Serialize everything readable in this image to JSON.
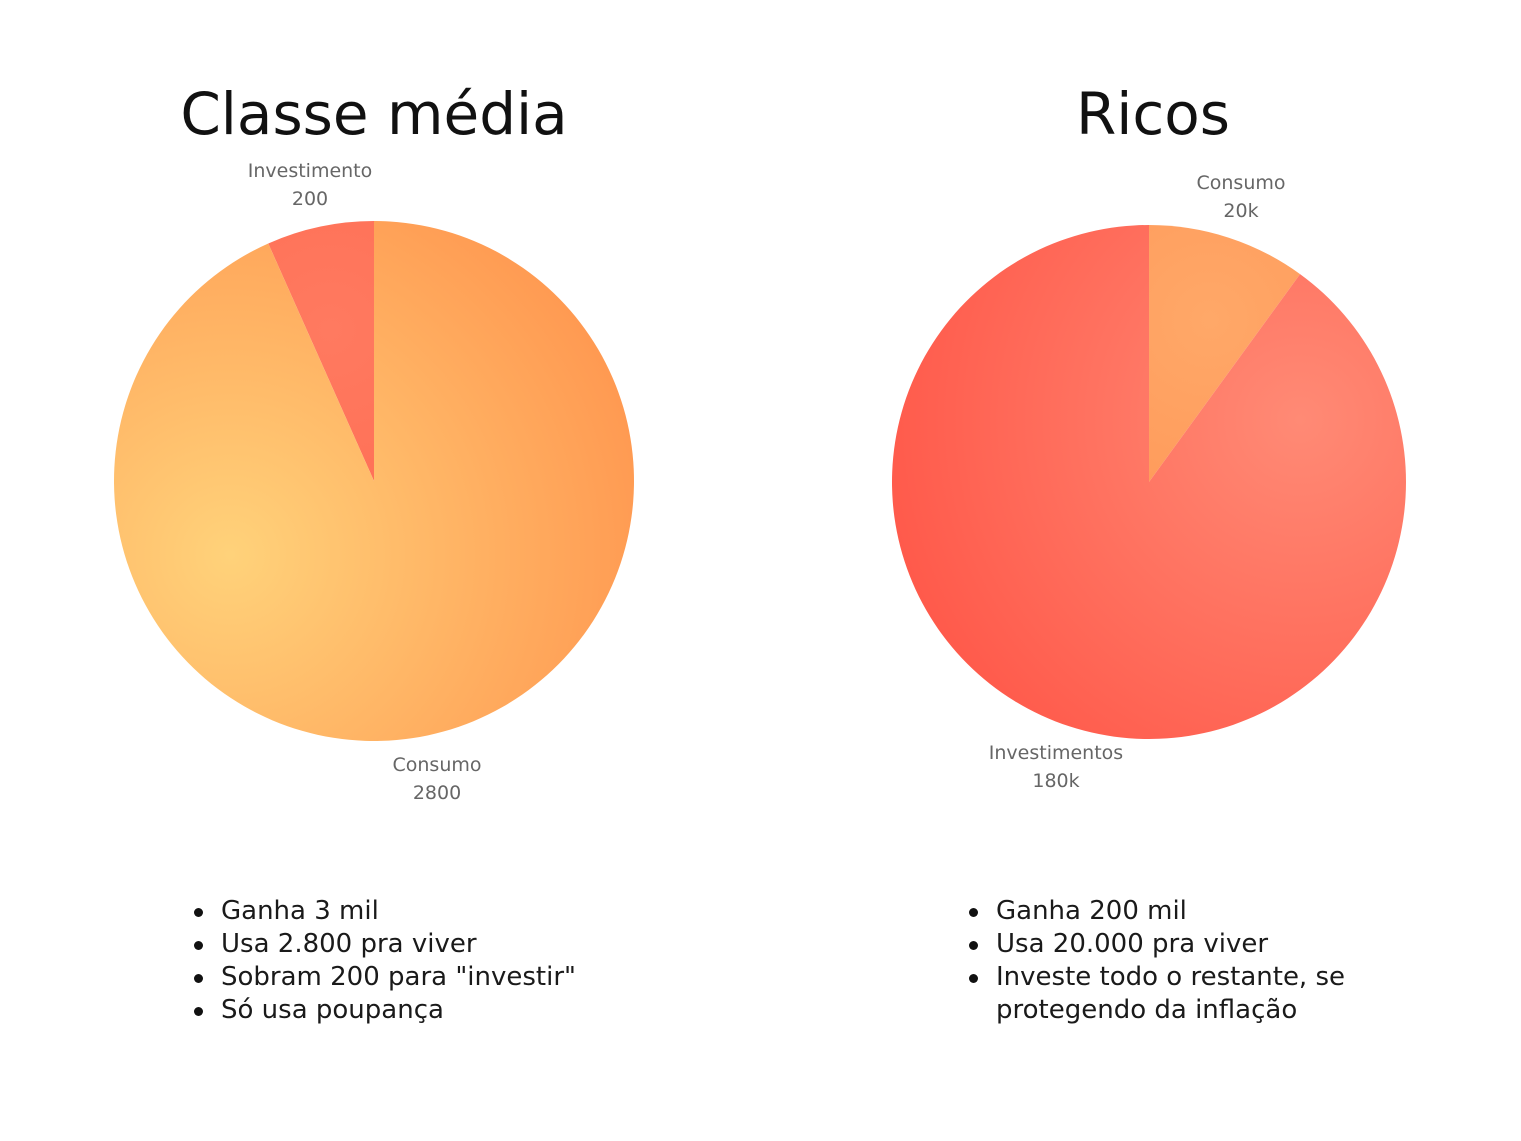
{
  "chart_data": [
    {
      "type": "pie",
      "title": "Classe média",
      "slices": [
        {
          "label": "Consumo",
          "value": 2800,
          "value_label": "2800",
          "color": "#ff9a52",
          "color_light": "#ffd27a"
        },
        {
          "label": "Investimento",
          "value": 200,
          "value_label": "200",
          "color": "#ff6f55",
          "color_light": "#ff7a60"
        }
      ],
      "bullets": [
        "Ganha 3 mil",
        "Usa 2.800 pra viver",
        "Sobram 200 para \"investir\"",
        "Só usa poupança"
      ]
    },
    {
      "type": "pie",
      "title": "Ricos",
      "slices": [
        {
          "label": "Consumo",
          "value": 20000,
          "value_label": "20k",
          "color": "#ff9a5a",
          "color_light": "#ffa868"
        },
        {
          "label": "Investimentos",
          "value": 180000,
          "value_label": "180k",
          "color": "#ff5a4b",
          "color_light": "#ff8a75"
        }
      ],
      "bullets": [
        "Ganha 200 mil",
        "Usa 20.000 pra viver",
        "Investe todo o restante, se protegendo da inflação"
      ]
    }
  ]
}
